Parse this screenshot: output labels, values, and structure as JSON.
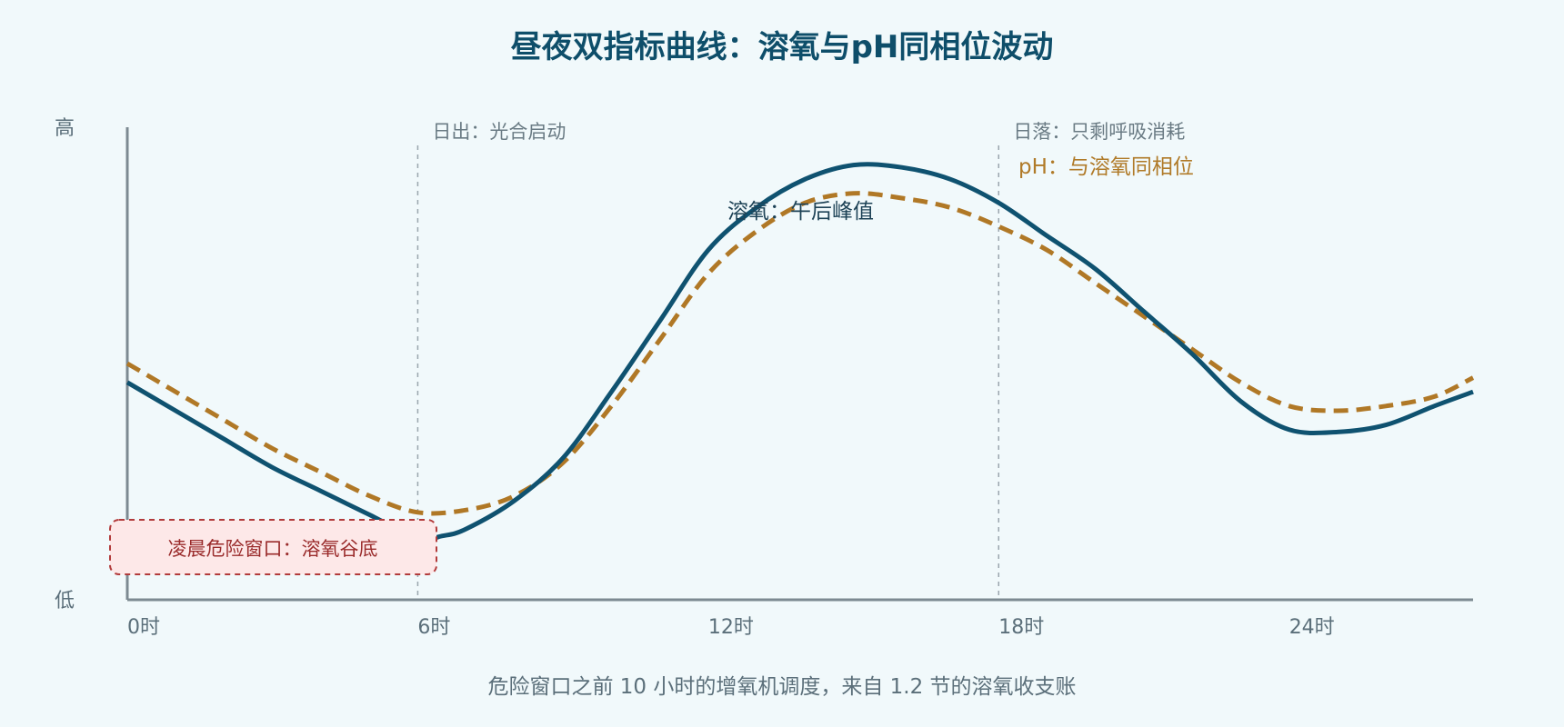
{
  "chart_data": {
    "type": "line",
    "title": "昼夜双指标曲线：溶氧与pH同相位波动",
    "y_axis": {
      "high_label": "高",
      "low_label": "低",
      "ylim": [
        0,
        1
      ]
    },
    "x_axis": {
      "ticks": [
        0,
        6,
        12,
        18,
        24
      ],
      "tick_labels": [
        "0时",
        "6时",
        "12时",
        "18时",
        "24时"
      ],
      "xlim": [
        0,
        27.8
      ]
    },
    "series": [
      {
        "key": "do",
        "color": "#0f5270",
        "style": "solid",
        "points": [
          [
            0,
            0.46
          ],
          [
            1,
            0.4
          ],
          [
            2,
            0.34
          ],
          [
            3,
            0.28
          ],
          [
            4,
            0.23
          ],
          [
            5,
            0.18
          ],
          [
            6,
            0.13
          ],
          [
            6.5,
            0.135
          ],
          [
            7,
            0.15
          ],
          [
            8,
            0.21
          ],
          [
            9,
            0.3
          ],
          [
            10,
            0.44
          ],
          [
            11,
            0.59
          ],
          [
            12,
            0.74
          ],
          [
            13,
            0.83
          ],
          [
            14,
            0.89
          ],
          [
            15,
            0.92
          ],
          [
            16,
            0.915
          ],
          [
            17,
            0.89
          ],
          [
            18,
            0.84
          ],
          [
            19,
            0.77
          ],
          [
            20,
            0.7
          ],
          [
            21,
            0.61
          ],
          [
            22,
            0.52
          ],
          [
            23,
            0.42
          ],
          [
            24,
            0.36
          ],
          [
            25,
            0.355
          ],
          [
            26,
            0.37
          ],
          [
            27,
            0.41
          ],
          [
            27.8,
            0.44
          ]
        ]
      },
      {
        "key": "ph",
        "color": "#b07826",
        "style": "dashed",
        "points": [
          [
            0,
            0.5
          ],
          [
            1,
            0.44
          ],
          [
            2,
            0.38
          ],
          [
            3,
            0.32
          ],
          [
            4,
            0.27
          ],
          [
            5,
            0.22
          ],
          [
            6,
            0.185
          ],
          [
            7,
            0.19
          ],
          [
            8,
            0.22
          ],
          [
            9,
            0.29
          ],
          [
            10,
            0.41
          ],
          [
            11,
            0.55
          ],
          [
            12,
            0.69
          ],
          [
            13,
            0.78
          ],
          [
            14,
            0.84
          ],
          [
            15,
            0.86
          ],
          [
            16,
            0.85
          ],
          [
            17,
            0.83
          ],
          [
            18,
            0.79
          ],
          [
            19,
            0.74
          ],
          [
            20,
            0.67
          ],
          [
            21,
            0.6
          ],
          [
            22,
            0.53
          ],
          [
            23,
            0.46
          ],
          [
            24,
            0.41
          ],
          [
            25,
            0.4
          ],
          [
            26,
            0.41
          ],
          [
            27,
            0.43
          ],
          [
            27.8,
            0.47
          ]
        ]
      }
    ],
    "reference_lines": [
      {
        "x": 6,
        "label": "日出：光合启动"
      },
      {
        "x": 18,
        "label": "日落：只剩呼吸消耗"
      }
    ],
    "annotations": {
      "do_peak": "溶氧：午后峰值",
      "ph_note": "pH：与溶氧同相位",
      "danger_window": "凌晨危险窗口：溶氧谷底"
    },
    "caption": "危险窗口之前 10 小时的增氧机调度，来自 1.2 节的溶氧收支账"
  }
}
